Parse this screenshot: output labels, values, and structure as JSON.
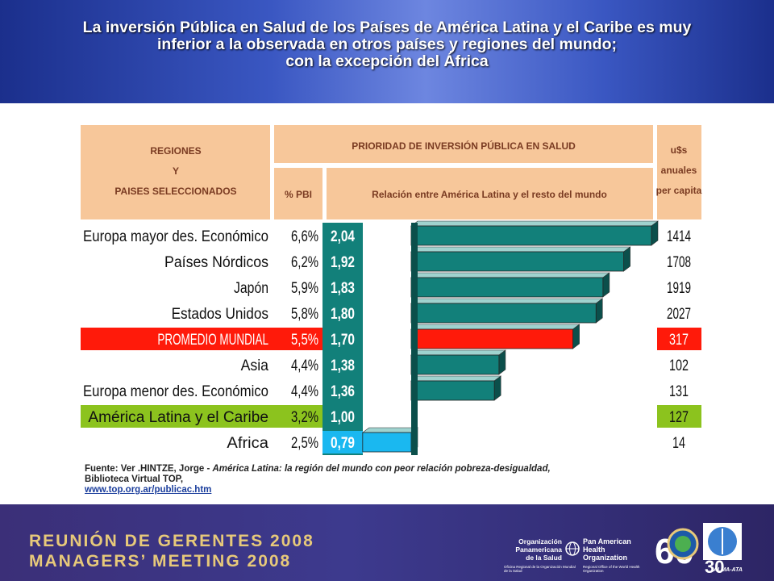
{
  "title": {
    "line1": "La inversión Pública en Salud de los Países de América Latina y el Caribe es muy",
    "line2": "inferior a la observada en otros países y regiones del mundo;",
    "line3": "con la excepción del África"
  },
  "chart_data": {
    "type": "bar",
    "header_regions": [
      "REGIONES",
      "Y",
      "PAISES SELECCIONADOS"
    ],
    "header_priority": "PRIORIDAD DE INVERSIÓN PÚBLICA EN SALUD",
    "header_pbi": "% PBI",
    "header_relation": "Relación entre América Latina y el resto del mundo",
    "header_usd": [
      "u$s",
      "anuales",
      "per capita"
    ],
    "rows": [
      {
        "region": "Europa mayor des. Económico",
        "pbi": "6,6%",
        "ratio": 2.04,
        "ratio_label": "2,04",
        "usd": "1414",
        "highlight": "none"
      },
      {
        "region": "Países Nórdicos",
        "pbi": "6,2%",
        "ratio": 1.92,
        "ratio_label": "1,92",
        "usd": "1708",
        "highlight": "none"
      },
      {
        "region": "Japón",
        "pbi": "5,9%",
        "ratio": 1.83,
        "ratio_label": "1,83",
        "usd": "1919",
        "highlight": "none"
      },
      {
        "region": "Estados Unidos",
        "pbi": "5,8%",
        "ratio": 1.8,
        "ratio_label": "1,80",
        "usd": "2027",
        "highlight": "none"
      },
      {
        "region": "PROMEDIO MUNDIAL",
        "pbi": "5,5%",
        "ratio": 1.7,
        "ratio_label": "1,70",
        "usd": "317",
        "highlight": "red"
      },
      {
        "region": "Asia",
        "pbi": "4,4%",
        "ratio": 1.38,
        "ratio_label": "1,38",
        "usd": "102",
        "highlight": "none"
      },
      {
        "region": "Europa menor des. Económico",
        "pbi": "4,4%",
        "ratio": 1.36,
        "ratio_label": "1,36",
        "usd": "131",
        "highlight": "none"
      },
      {
        "region": "América Latina y el Caribe",
        "pbi": "3,2%",
        "ratio": 1.0,
        "ratio_label": "1,00",
        "usd": "127",
        "highlight": "green"
      },
      {
        "region": "Africa",
        "pbi": "2,5%",
        "ratio": 0.79,
        "ratio_label": "0,79",
        "usd": "14",
        "highlight": "cyan"
      }
    ],
    "baseline_ratio": 1.0,
    "colors": {
      "header_bg": "#f7c79a",
      "bar_teal": "#12807a",
      "bar_red": "#ff1a0a",
      "bar_cyan": "#1ab8f0",
      "row_green": "#8cc31e",
      "ratio_cell": "#12807a"
    }
  },
  "source": {
    "label": "Fuente: Ver .HINTZE, Jorge - ",
    "work": "América Latina: la región del mundo con peor relación pobreza-desigualdad,",
    "publisher": "Biblioteca Virtual TOP,",
    "link": "www.top.org.ar/publicac.htm"
  },
  "footer": {
    "meeting_es": "REUNIÓN DE GERENTES 2008",
    "meeting_en": "MANAGERS’ MEETING 2008",
    "org_es": [
      "Organización",
      "Panamericana",
      "de la Salud"
    ],
    "org_en": [
      "Pan American",
      "Health",
      "Organization"
    ],
    "org_sub_es": "Oficina Regional de la Organización Mundial de la Salud",
    "org_sub_en": "Regional Office of the World Health Organization",
    "alma": "ALMA-ATA"
  }
}
